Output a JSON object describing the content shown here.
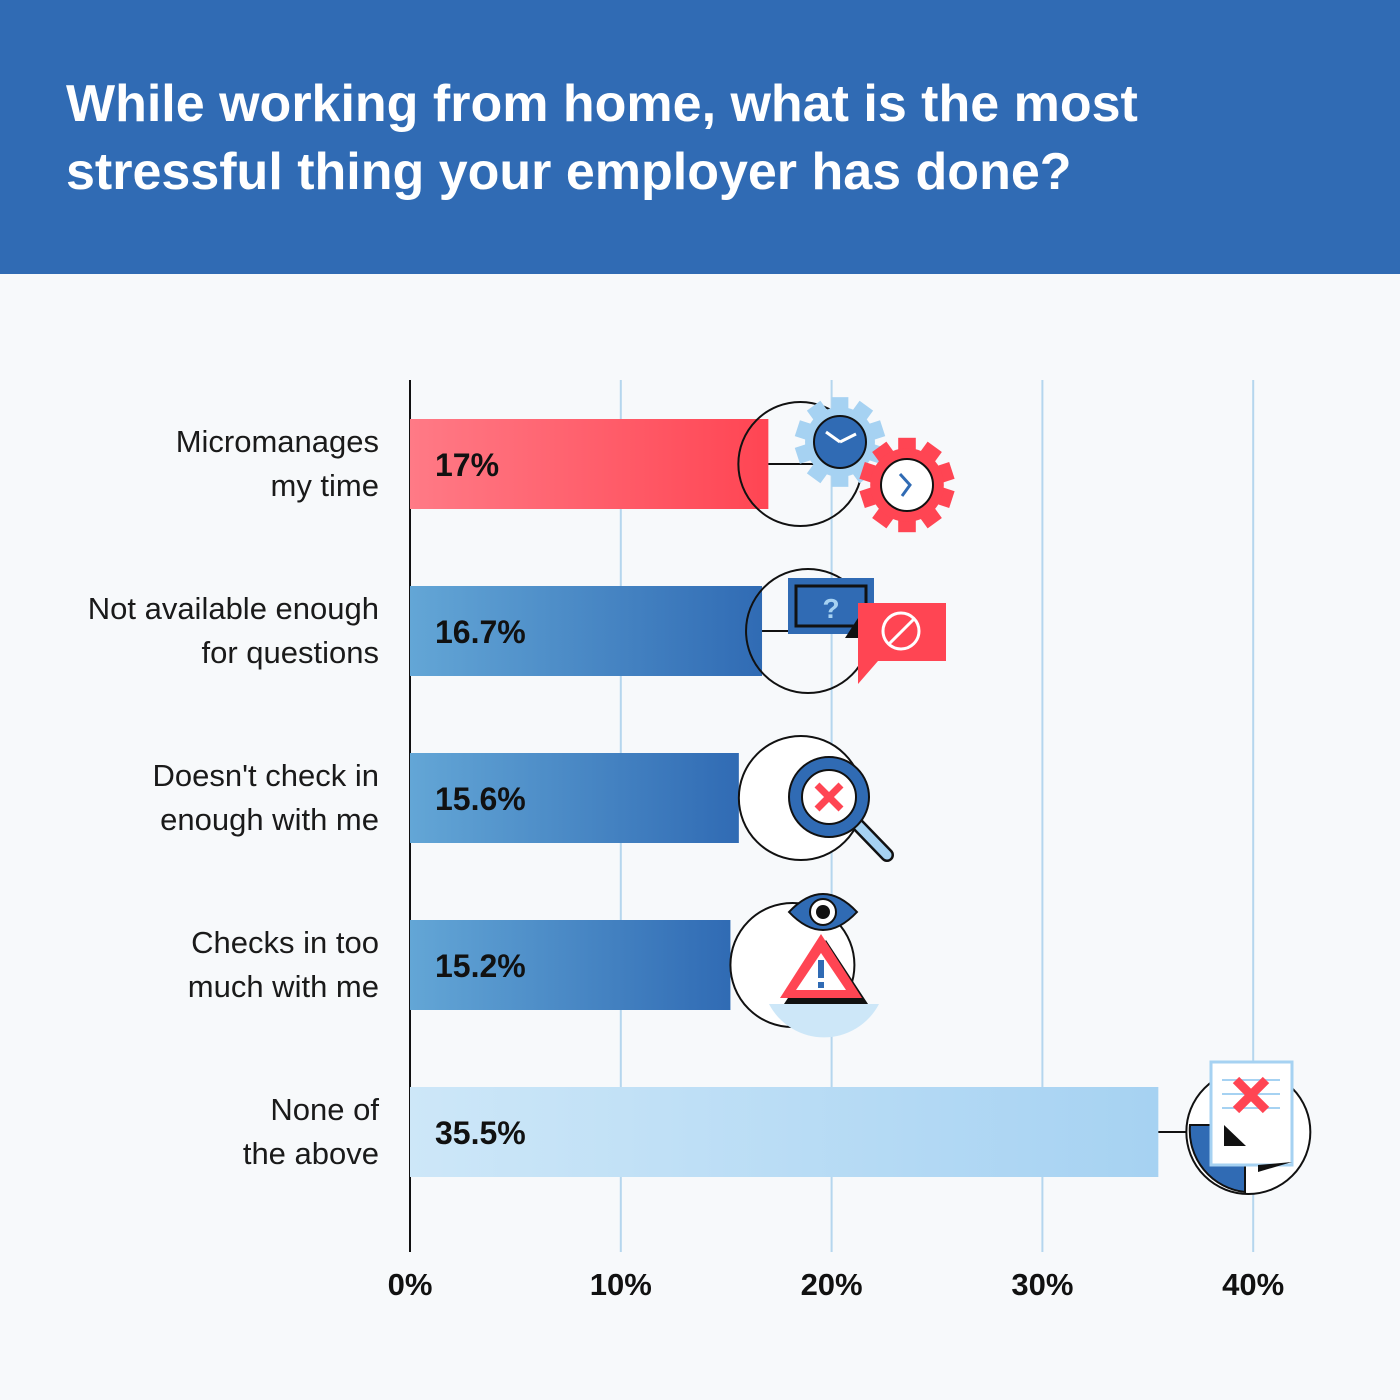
{
  "title": "While working from home, what is the most\nstressful thing your employer has done?",
  "colors": {
    "header": "#306bb4",
    "background": "#f7f9fb",
    "red": "#ff4553",
    "blue_dark": "#306bb4",
    "blue_light": "#63a6d6",
    "pale_blue": "#a6d2f2",
    "gridline": "#b5d6ee"
  },
  "chart_data": {
    "type": "bar",
    "orientation": "horizontal",
    "title": "While working from home, what is the most stressful thing your employer has done?",
    "categories": [
      "Micromanages\nmy time",
      "Not available enough\nfor questions",
      "Doesn't check in\nenough with me",
      "Checks in too\nmuch with me",
      "None of\nthe above"
    ],
    "values": [
      17,
      16.7,
      15.6,
      15.2,
      35.5
    ],
    "value_labels": [
      "17%",
      "16.7%",
      "15.6%",
      "15.2%",
      "35.5%"
    ],
    "bar_styles": [
      "red",
      "blue",
      "blue",
      "blue",
      "pale"
    ],
    "icons": [
      "clock-gears-icon",
      "question-blocked-chat-icon",
      "magnifier-x-icon",
      "eye-warning-icon",
      "rejected-document-icon"
    ],
    "xlim": [
      0,
      40
    ],
    "xticks": [
      0,
      10,
      20,
      30,
      40
    ],
    "xtick_labels": [
      "0%",
      "10%",
      "20%",
      "30%",
      "40%"
    ],
    "grid": "vertical"
  }
}
